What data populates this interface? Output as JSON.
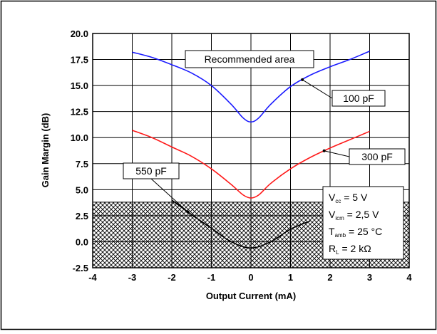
{
  "chart_data": {
    "type": "line",
    "title": "",
    "xlabel": "Output Current (mA)",
    "ylabel": "Gain Margin (dB)",
    "xlim": [
      -4,
      4
    ],
    "ylim": [
      -2.5,
      20.0
    ],
    "x_ticks": [
      "-4",
      "-3",
      "-2",
      "-1",
      "0",
      "1",
      "2",
      "3",
      "4"
    ],
    "y_ticks": [
      "-2.5",
      "0.0",
      "2.5",
      "5.0",
      "7.5",
      "10.0",
      "12.5",
      "15.0",
      "17.5",
      "20.0"
    ],
    "grid": true,
    "series": [
      {
        "name": "100 pF",
        "color": "#1a1aff",
        "x": [
          -3,
          -2.5,
          -2,
          -1.5,
          -1,
          -0.5,
          -0.2,
          0,
          0.2,
          0.5,
          1,
          1.5,
          2,
          2.5,
          3
        ],
        "y": [
          18.2,
          17.7,
          17.0,
          16.2,
          15.0,
          13.2,
          11.9,
          11.5,
          11.9,
          13.2,
          14.9,
          16.0,
          16.8,
          17.5,
          18.3
        ]
      },
      {
        "name": "300 pF",
        "color": "#ff1a1a",
        "x": [
          -3,
          -2.5,
          -2,
          -1.5,
          -1,
          -0.5,
          -0.2,
          0,
          0.2,
          0.5,
          1,
          1.5,
          2,
          2.5,
          3
        ],
        "y": [
          10.7,
          10.0,
          9.1,
          8.2,
          7.0,
          5.5,
          4.5,
          4.2,
          4.5,
          5.6,
          7.0,
          8.1,
          9.0,
          9.8,
          10.6
        ]
      },
      {
        "name": "550 pF",
        "color": "#000000",
        "x": [
          -2,
          -1.5,
          -1,
          -0.5,
          0,
          0.5,
          1,
          1.5
        ],
        "y": [
          4.0,
          2.6,
          1.3,
          0.0,
          -0.6,
          0.0,
          1.2,
          2.0
        ]
      }
    ],
    "annotations": {
      "recommended_area": "Recommended area",
      "hatched_region_top": 3.8
    },
    "conditions": [
      {
        "main": "V",
        "sub": "cc",
        "rest": " = 5 V"
      },
      {
        "main": "V",
        "sub": "icm",
        "rest": " = 2,5 V"
      },
      {
        "main": "T",
        "sub": "amb",
        "rest": " = 25 °C"
      },
      {
        "main": "R",
        "sub": "L",
        "rest": " = 2 kΩ"
      }
    ]
  }
}
